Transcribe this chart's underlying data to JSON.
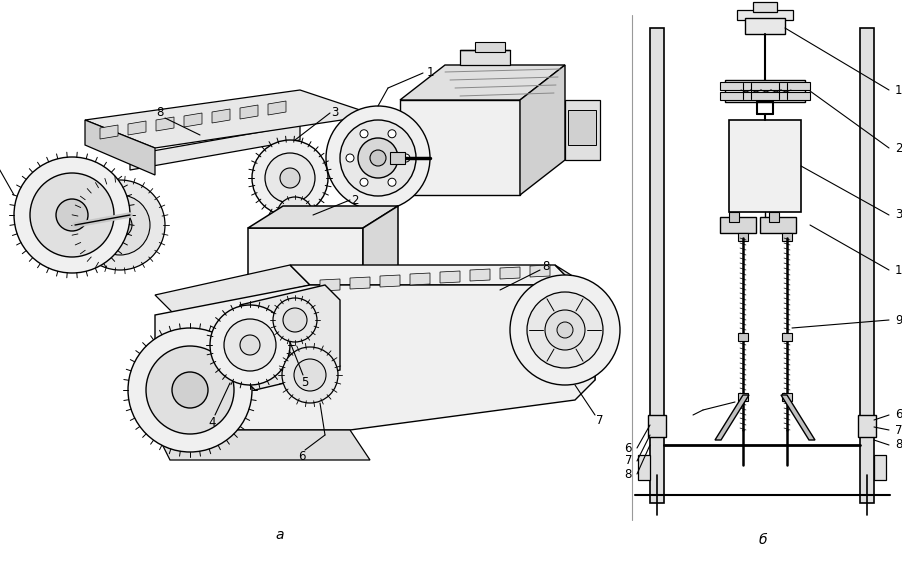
{
  "bg_color": "#ffffff",
  "fig_width": 9.02,
  "fig_height": 5.63,
  "dpi": 100,
  "label_a": "а",
  "label_b": "б"
}
